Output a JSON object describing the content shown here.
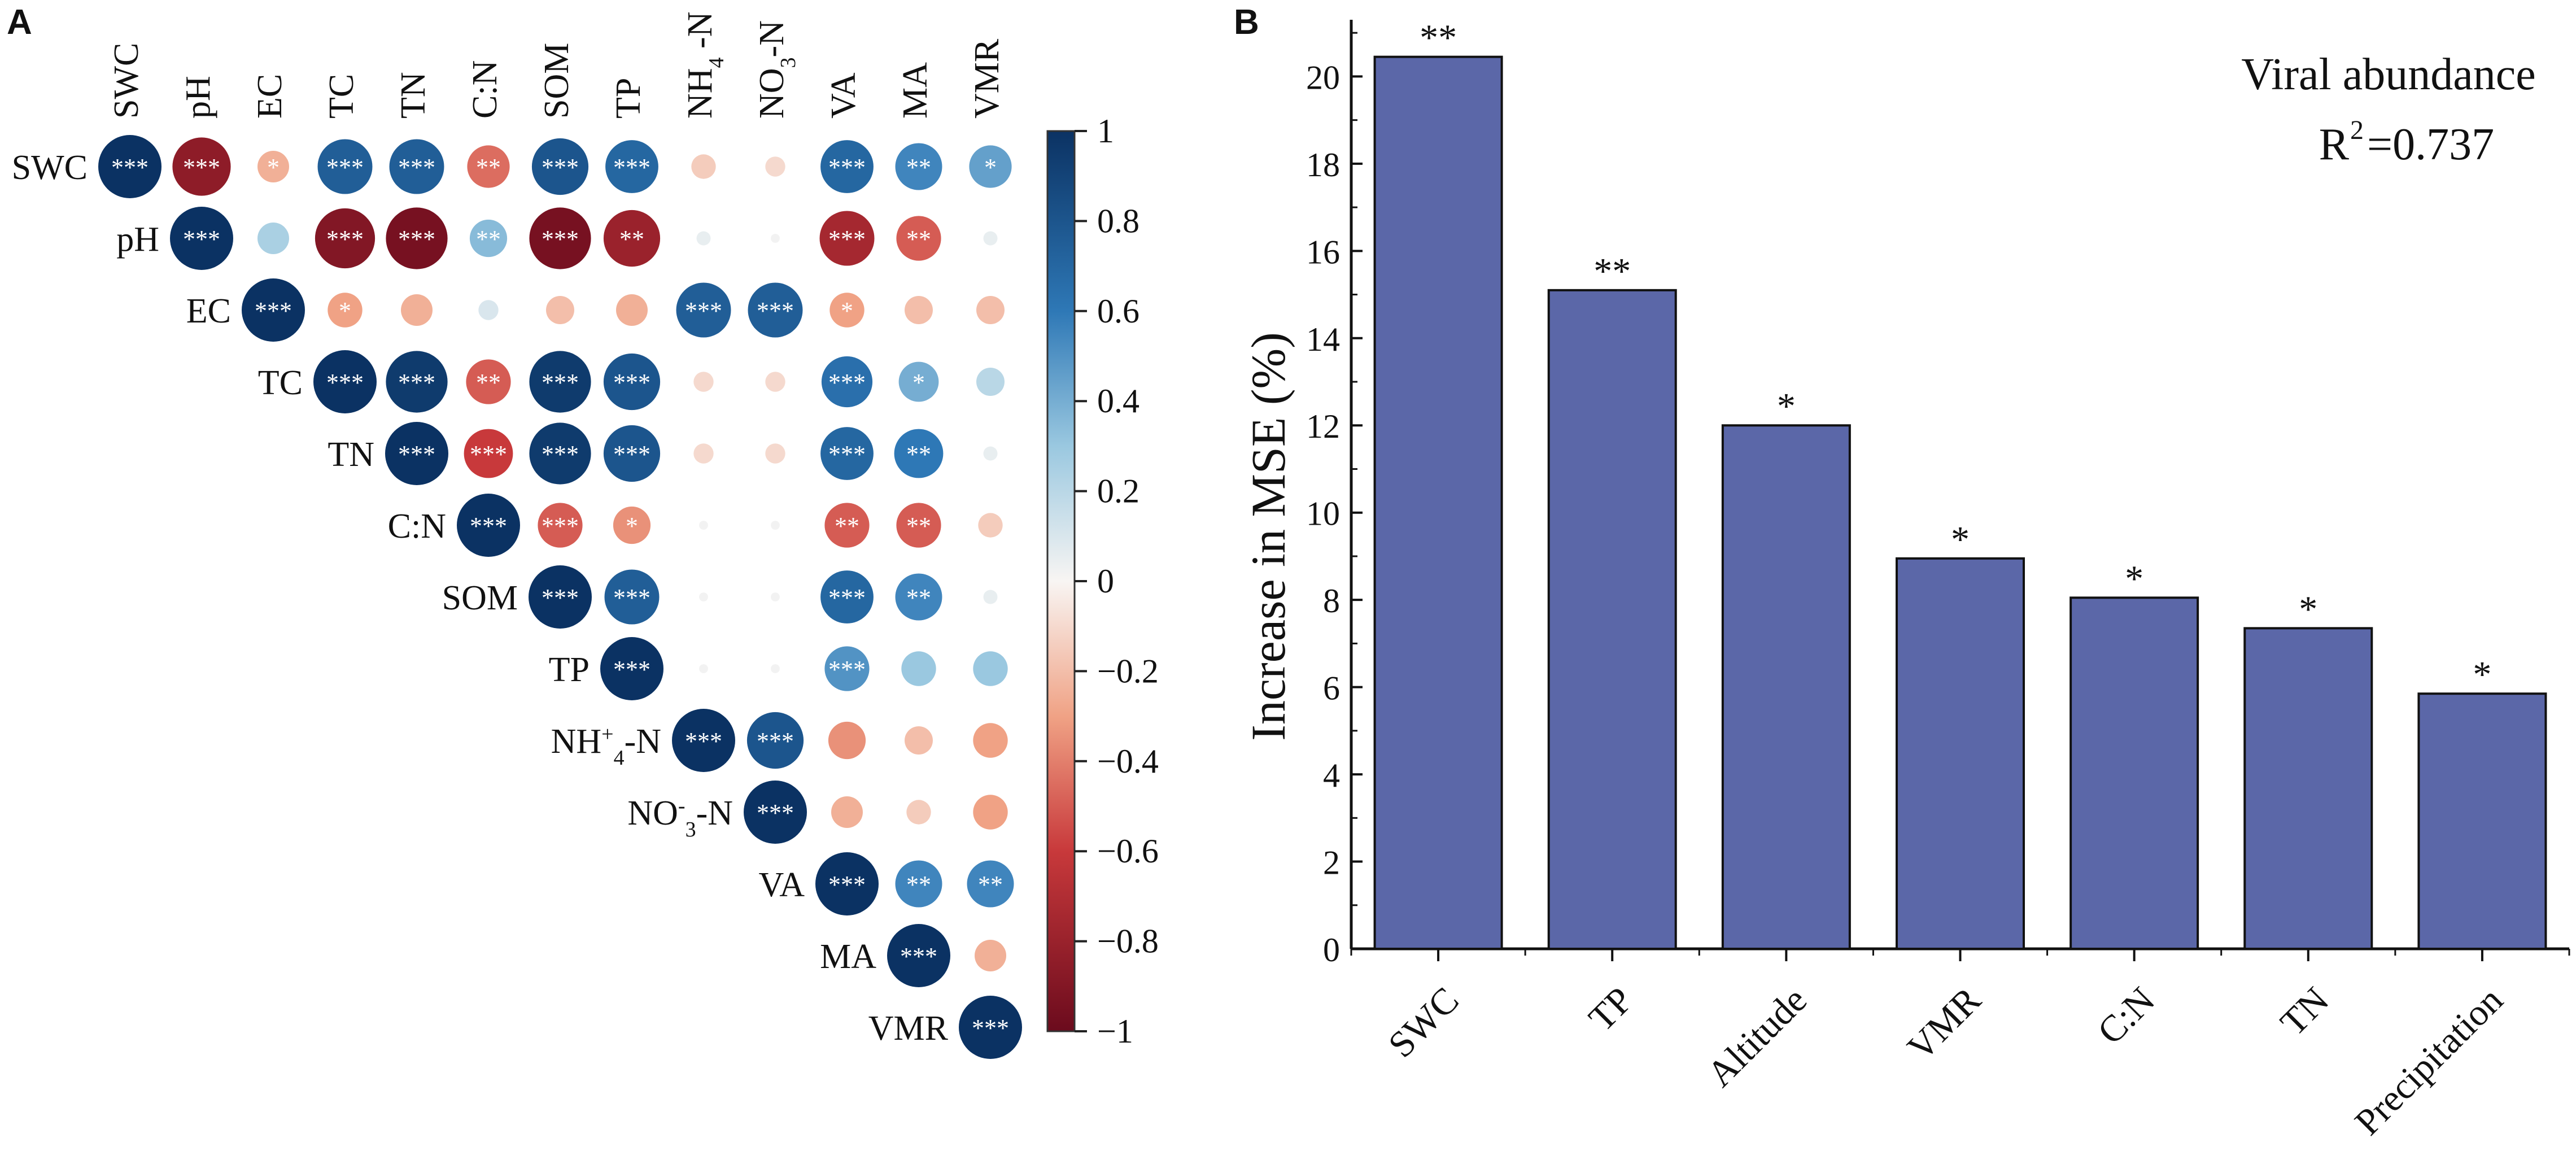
{
  "chart_data": [
    {
      "panel_label": "A",
      "type": "heatmap",
      "subtype": "upper-triangular correlation circle plot",
      "variables": [
        "SWC",
        "pH",
        "EC",
        "TC",
        "TN",
        "C:N",
        "SOM",
        "TP",
        "NH4+-N",
        "NO3--N",
        "VA",
        "MA",
        "VMR"
      ],
      "column_labels": [
        {
          "base": "SWC"
        },
        {
          "base": "pH"
        },
        {
          "base": "EC"
        },
        {
          "base": "TC"
        },
        {
          "base": "TN"
        },
        {
          "base": "C:N"
        },
        {
          "base": "SOM"
        },
        {
          "base": "TP"
        },
        {
          "base": "NH",
          "sub": "4",
          "tail": " -N"
        },
        {
          "base": "NO",
          "sub": "3",
          "tail": "-N"
        },
        {
          "base": "VA"
        },
        {
          "base": "MA"
        },
        {
          "base": "VMR"
        }
      ],
      "row_labels": [
        {
          "base": "SWC"
        },
        {
          "base": "pH"
        },
        {
          "base": "EC"
        },
        {
          "base": "TC"
        },
        {
          "base": "TN"
        },
        {
          "base": "C:N"
        },
        {
          "base": "SOM"
        },
        {
          "base": "TP"
        },
        {
          "base": "NH",
          "sub": "4",
          "sup": "+",
          "tail": "-N"
        },
        {
          "base": "NO",
          "sub": "3",
          "sup": "-",
          "tail": "-N"
        },
        {
          "base": "VA"
        },
        {
          "base": "MA"
        },
        {
          "base": "VMR"
        }
      ],
      "correlations": [
        [
          1,
          -0.85,
          -0.25,
          0.75,
          0.75,
          -0.45,
          0.8,
          0.7,
          -0.15,
          -0.1,
          0.7,
          0.55,
          0.45
        ],
        [
          null,
          1,
          0.25,
          -0.9,
          -0.95,
          0.35,
          -0.95,
          -0.8,
          0.05,
          0.02,
          -0.75,
          -0.5,
          0.05
        ],
        [
          null,
          null,
          1,
          -0.3,
          -0.25,
          0.1,
          -0.2,
          -0.25,
          0.75,
          0.75,
          -0.3,
          -0.2,
          -0.2
        ],
        [
          null,
          null,
          null,
          1,
          0.95,
          -0.5,
          0.95,
          0.8,
          -0.1,
          -0.1,
          0.65,
          0.4,
          0.2
        ],
        [
          null,
          null,
          null,
          null,
          1,
          -0.6,
          0.95,
          0.8,
          -0.1,
          -0.1,
          0.7,
          0.6,
          0.05
        ],
        [
          null,
          null,
          null,
          null,
          null,
          1,
          -0.5,
          -0.35,
          0.02,
          0.02,
          -0.5,
          -0.5,
          -0.15
        ],
        [
          null,
          null,
          null,
          null,
          null,
          null,
          1,
          0.75,
          0.02,
          0.02,
          0.7,
          0.55,
          0.05
        ],
        [
          null,
          null,
          null,
          null,
          null,
          null,
          null,
          1,
          0.02,
          0.02,
          0.5,
          0.3,
          0.3
        ],
        [
          null,
          null,
          null,
          null,
          null,
          null,
          null,
          null,
          1,
          0.8,
          -0.35,
          -0.2,
          -0.3
        ],
        [
          null,
          null,
          null,
          null,
          null,
          null,
          null,
          null,
          null,
          1,
          -0.25,
          -0.15,
          -0.3
        ],
        [
          null,
          null,
          null,
          null,
          null,
          null,
          null,
          null,
          null,
          null,
          1,
          0.55,
          0.55
        ],
        [
          null,
          null,
          null,
          null,
          null,
          null,
          null,
          null,
          null,
          null,
          null,
          1,
          -0.25
        ],
        [
          null,
          null,
          null,
          null,
          null,
          null,
          null,
          null,
          null,
          null,
          null,
          null,
          1
        ]
      ],
      "significance": [
        [
          "***",
          "***",
          "*",
          "***",
          "***",
          "**",
          "***",
          "***",
          "",
          "",
          "***",
          "**",
          "*"
        ],
        [
          "",
          "***",
          "",
          "***",
          "***",
          "**",
          "***",
          "**",
          "",
          "",
          "***",
          "**",
          ""
        ],
        [
          "",
          "",
          "***",
          "*",
          "",
          "",
          "",
          "",
          "***",
          "***",
          "*",
          "",
          ""
        ],
        [
          "",
          "",
          "",
          "***",
          "***",
          "**",
          "***",
          "***",
          "",
          "",
          "***",
          "*",
          ""
        ],
        [
          "",
          "",
          "",
          "",
          "***",
          "***",
          "***",
          "***",
          "",
          "",
          "***",
          "**",
          ""
        ],
        [
          "",
          "",
          "",
          "",
          "",
          "***",
          "***",
          "*",
          "",
          "",
          "**",
          "**",
          ""
        ],
        [
          "",
          "",
          "",
          "",
          "",
          "",
          "***",
          "***",
          "",
          "",
          "***",
          "**",
          ""
        ],
        [
          "",
          "",
          "",
          "",
          "",
          "",
          "",
          "***",
          "",
          "",
          "***",
          "",
          ""
        ],
        [
          "",
          "",
          "",
          "",
          "",
          "",
          "",
          "",
          "***",
          "***",
          "",
          "",
          ""
        ],
        [
          "",
          "",
          "",
          "",
          "",
          "",
          "",
          "",
          "",
          "***",
          "",
          "",
          ""
        ],
        [
          "",
          "",
          "",
          "",
          "",
          "",
          "",
          "",
          "",
          "",
          "***",
          "**",
          "**"
        ],
        [
          "",
          "",
          "",
          "",
          "",
          "",
          "",
          "",
          "",
          "",
          "",
          "***",
          ""
        ],
        [
          "",
          "",
          "",
          "",
          "",
          "",
          "",
          "",
          "",
          "",
          "",
          "",
          "***"
        ]
      ],
      "colorbar": {
        "range": [
          -1,
          1
        ],
        "ticks": [
          1,
          0.8,
          0.6,
          0.4,
          0.2,
          0,
          -0.2,
          -0.4,
          -0.6,
          -0.8,
          -1
        ],
        "tick_labels": [
          "1",
          "0.8",
          "0.6",
          "0.4",
          "0.2",
          "0",
          "−0.2",
          "−0.4",
          "−0.6",
          "−0.8",
          "−1"
        ],
        "colors": {
          "neg1": "#6b0b1d",
          "neg06": "#c8393b",
          "neg03": "#f0a285",
          "zero": "#f8f5f3",
          "pos03": "#9ac8e0",
          "pos06": "#2e78b6",
          "pos1": "#0b3263"
        }
      }
    },
    {
      "panel_label": "B",
      "type": "bar",
      "title": "Viral abundance",
      "r2_label": "R",
      "r2_sup": "2",
      "r2_value": "=0.737",
      "categories": [
        "SWC",
        "TP",
        "Altitude",
        "VMR",
        "C:N",
        "TN",
        "Precipitation"
      ],
      "values": [
        20.45,
        15.1,
        12.0,
        8.95,
        8.05,
        7.35,
        5.85
      ],
      "significance": [
        "**",
        "**",
        "*",
        "*",
        "*",
        "*",
        "*"
      ],
      "xlabel": "",
      "ylabel": "Increase in MSE (%)",
      "ylim": [
        0,
        21.3
      ],
      "yticks": [
        0,
        2,
        4,
        6,
        8,
        10,
        12,
        14,
        16,
        18,
        20
      ],
      "bar_color": "#5b67a8"
    }
  ]
}
